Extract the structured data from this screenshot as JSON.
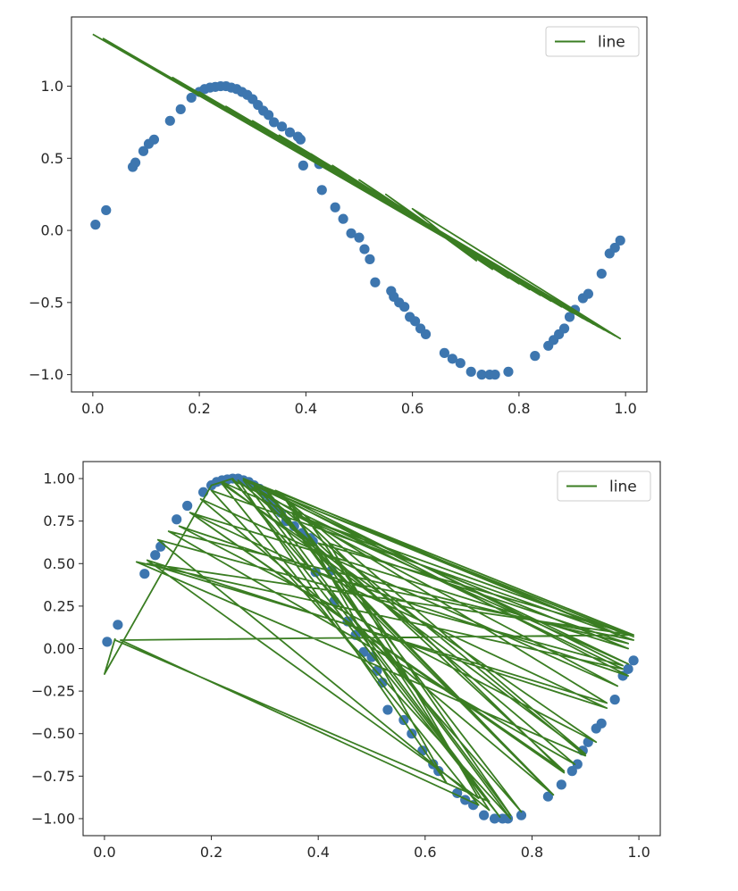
{
  "chart_data": [
    {
      "type": "scatter",
      "xlim": [
        -0.04,
        1.04
      ],
      "ylim": [
        -1.12,
        1.48
      ],
      "xticks": [
        "0.0",
        "0.2",
        "0.4",
        "0.6",
        "0.8",
        "1.0"
      ],
      "yticks": [
        "-1.0",
        "-0.5",
        "0.0",
        "0.5",
        "1.0"
      ],
      "grid": false,
      "legend": {
        "placement": "top-right",
        "entries": [
          "line"
        ]
      },
      "scatter": {
        "color": "#3d76af",
        "x": [
          0.005,
          0.025,
          0.075,
          0.08,
          0.095,
          0.105,
          0.115,
          0.145,
          0.165,
          0.185,
          0.2,
          0.21,
          0.22,
          0.23,
          0.24,
          0.25,
          0.26,
          0.27,
          0.28,
          0.29,
          0.3,
          0.31,
          0.32,
          0.33,
          0.34,
          0.355,
          0.37,
          0.385,
          0.39,
          0.395,
          0.425,
          0.43,
          0.455,
          0.47,
          0.485,
          0.5,
          0.51,
          0.52,
          0.53,
          0.56,
          0.565,
          0.575,
          0.585,
          0.595,
          0.605,
          0.615,
          0.625,
          0.66,
          0.675,
          0.69,
          0.71,
          0.73,
          0.745,
          0.755,
          0.78,
          0.83,
          0.855,
          0.865,
          0.875,
          0.885,
          0.895,
          0.905,
          0.92,
          0.93,
          0.955,
          0.97,
          0.98,
          0.99
        ],
        "y": [
          0.04,
          0.14,
          0.44,
          0.47,
          0.55,
          0.6,
          0.63,
          0.76,
          0.84,
          0.92,
          0.96,
          0.98,
          0.99,
          0.995,
          1.0,
          1.0,
          0.99,
          0.98,
          0.96,
          0.94,
          0.91,
          0.87,
          0.83,
          0.8,
          0.75,
          0.72,
          0.68,
          0.65,
          0.63,
          0.45,
          0.46,
          0.28,
          0.16,
          0.08,
          -0.02,
          -0.05,
          -0.13,
          -0.2,
          -0.36,
          -0.42,
          -0.46,
          -0.5,
          -0.53,
          -0.6,
          -0.63,
          -0.68,
          -0.72,
          -0.85,
          -0.89,
          -0.92,
          -0.98,
          -1.0,
          -1.0,
          -1.0,
          -0.98,
          -0.87,
          -0.8,
          -0.76,
          -0.72,
          -0.68,
          -0.6,
          -0.55,
          -0.47,
          -0.44,
          -0.3,
          -0.16,
          -0.12,
          -0.07
        ]
      },
      "line": {
        "name": "line",
        "color": "#3a7d22",
        "x": [
          0.0,
          0.99,
          0.02,
          0.98,
          0.04,
          0.97,
          0.07,
          0.96,
          0.1,
          0.95,
          0.13,
          0.94,
          0.16,
          0.93,
          0.19,
          0.92,
          0.22,
          0.9,
          0.25,
          0.88,
          0.29,
          0.86,
          0.33,
          0.84,
          0.37,
          0.82,
          0.41,
          0.8,
          0.45,
          0.78,
          0.5,
          0.75,
          0.55,
          0.72,
          0.6,
          0.99,
          0.15,
          0.98,
          0.2,
          0.97,
          0.25,
          0.96,
          0.3,
          0.95,
          0.35,
          0.99
        ],
        "y": [
          1.36,
          -0.75,
          1.33,
          -0.73,
          1.28,
          -0.71,
          1.22,
          -0.69,
          1.15,
          -0.67,
          1.09,
          -0.65,
          1.03,
          -0.63,
          0.97,
          -0.61,
          0.91,
          -0.57,
          0.85,
          -0.53,
          0.77,
          -0.49,
          0.69,
          -0.45,
          0.61,
          -0.41,
          0.53,
          -0.37,
          0.45,
          -0.33,
          0.35,
          -0.27,
          0.25,
          -0.21,
          0.15,
          -0.75,
          1.06,
          -0.73,
          0.96,
          -0.71,
          0.86,
          -0.69,
          0.76,
          -0.67,
          0.66,
          -0.75
        ]
      }
    },
    {
      "type": "scatter",
      "xlim": [
        -0.04,
        1.04
      ],
      "ylim": [
        -1.1,
        1.1
      ],
      "xticks": [
        "0.0",
        "0.2",
        "0.4",
        "0.6",
        "0.8",
        "1.0"
      ],
      "yticks": [
        "-1.00",
        "-0.75",
        "-0.50",
        "-0.25",
        "0.00",
        "0.25",
        "0.50",
        "0.75",
        "1.00"
      ],
      "grid": false,
      "legend": {
        "placement": "top-right",
        "entries": [
          "line"
        ]
      },
      "scatter": {
        "color": "#3d76af",
        "x": [
          0.005,
          0.025,
          0.075,
          0.095,
          0.105,
          0.135,
          0.155,
          0.185,
          0.2,
          0.21,
          0.22,
          0.23,
          0.24,
          0.25,
          0.26,
          0.27,
          0.28,
          0.29,
          0.3,
          0.31,
          0.32,
          0.33,
          0.34,
          0.355,
          0.37,
          0.385,
          0.39,
          0.395,
          0.425,
          0.43,
          0.455,
          0.47,
          0.485,
          0.5,
          0.51,
          0.52,
          0.53,
          0.56,
          0.575,
          0.595,
          0.615,
          0.625,
          0.66,
          0.675,
          0.69,
          0.71,
          0.73,
          0.745,
          0.755,
          0.78,
          0.83,
          0.855,
          0.875,
          0.885,
          0.895,
          0.905,
          0.92,
          0.93,
          0.955,
          0.97,
          0.98,
          0.99
        ],
        "y": [
          0.04,
          0.14,
          0.44,
          0.55,
          0.6,
          0.76,
          0.84,
          0.92,
          0.96,
          0.98,
          0.99,
          0.995,
          1.0,
          1.0,
          0.99,
          0.98,
          0.96,
          0.94,
          0.91,
          0.87,
          0.83,
          0.8,
          0.75,
          0.72,
          0.68,
          0.65,
          0.63,
          0.45,
          0.46,
          0.28,
          0.16,
          0.08,
          -0.02,
          -0.05,
          -0.13,
          -0.2,
          -0.36,
          -0.42,
          -0.5,
          -0.6,
          -0.68,
          -0.72,
          -0.85,
          -0.89,
          -0.92,
          -0.98,
          -1.0,
          -1.0,
          -1.0,
          -0.98,
          -0.87,
          -0.8,
          -0.72,
          -0.68,
          -0.6,
          -0.55,
          -0.47,
          -0.44,
          -0.3,
          -0.16,
          -0.12,
          -0.07
        ]
      },
      "line": {
        "name": "line",
        "color": "#3a7d22",
        "x": [
          0.02,
          0.0,
          0.2,
          0.24,
          0.74,
          0.26,
          0.98,
          0.32,
          0.9,
          0.22,
          0.98,
          0.28,
          0.99,
          0.38,
          0.76,
          0.3,
          0.97,
          0.1,
          0.72,
          0.34,
          0.86,
          0.16,
          0.94,
          0.08,
          0.7,
          0.42,
          0.98,
          0.12,
          0.88,
          0.25,
          0.64,
          0.36,
          0.96,
          0.18,
          0.84,
          0.26,
          0.99,
          0.03,
          0.7,
          0.22,
          0.92,
          0.14,
          0.98,
          0.3,
          0.76,
          0.2,
          0.99,
          0.44,
          0.82,
          0.28,
          0.9,
          0.06,
          0.97,
          0.24,
          0.78,
          0.35,
          0.98,
          0.16,
          0.86,
          0.4,
          0.99,
          0.08,
          0.94,
          0.28,
          0.72,
          0.02
        ],
        "y": [
          0.06,
          -0.15,
          0.96,
          1.0,
          -0.99,
          0.99,
          0.06,
          0.93,
          -0.62,
          0.98,
          -0.09,
          0.96,
          0.07,
          0.76,
          -0.98,
          0.95,
          -0.1,
          0.64,
          -0.95,
          0.87,
          -0.73,
          0.8,
          -0.35,
          0.52,
          -0.88,
          0.62,
          0.03,
          0.69,
          -0.68,
          0.99,
          -0.79,
          0.78,
          -0.22,
          0.88,
          -0.86,
          1.0,
          0.08,
          0.05,
          -0.92,
          0.97,
          -0.55,
          0.72,
          -0.16,
          0.94,
          -1.0,
          0.93,
          0.05,
          0.4,
          -0.8,
          0.96,
          -0.63,
          0.51,
          -0.12,
          0.99,
          -0.96,
          0.8,
          0.0,
          0.8,
          -0.72,
          0.62,
          0.08,
          0.5,
          -0.32,
          0.95,
          -0.9,
          0.05
        ]
      }
    }
  ]
}
